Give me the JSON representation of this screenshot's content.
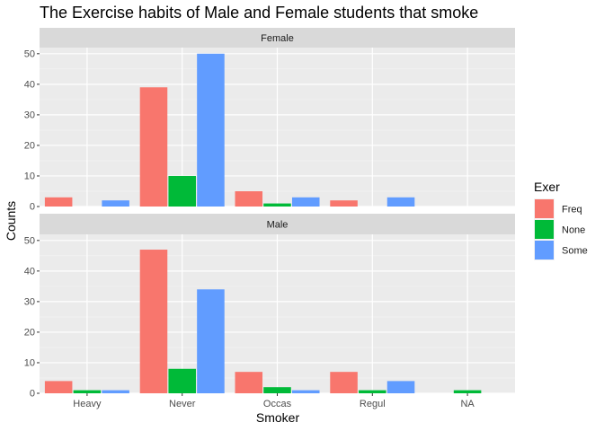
{
  "chart_data": {
    "type": "bar",
    "title": "The Exercise habits of Male and Female students that smoke",
    "xlabel": "Smoker",
    "ylabel": "Counts",
    "categories": [
      "Heavy",
      "Never",
      "Occas",
      "Regul",
      "NA"
    ],
    "ylim": [
      0,
      52
    ],
    "y_ticks": [
      0,
      10,
      20,
      30,
      40,
      50
    ],
    "legend": {
      "title": "Exer",
      "placement": "right",
      "entries": [
        {
          "label": "Freq",
          "color": "#F8766D"
        },
        {
          "label": "None",
          "color": "#00BA38"
        },
        {
          "label": "Some",
          "color": "#619CFF"
        }
      ]
    },
    "panels": [
      {
        "label": "Female",
        "bars": [
          {
            "category": "Heavy",
            "exer": "Freq",
            "value": 3
          },
          {
            "category": "Heavy",
            "exer": "Some",
            "value": 2
          },
          {
            "category": "Never",
            "exer": "Freq",
            "value": 39
          },
          {
            "category": "Never",
            "exer": "None",
            "value": 10
          },
          {
            "category": "Never",
            "exer": "Some",
            "value": 50
          },
          {
            "category": "Occas",
            "exer": "Freq",
            "value": 5
          },
          {
            "category": "Occas",
            "exer": "None",
            "value": 1
          },
          {
            "category": "Occas",
            "exer": "Some",
            "value": 3
          },
          {
            "category": "Regul",
            "exer": "Freq",
            "value": 2
          },
          {
            "category": "Regul",
            "exer": "Some",
            "value": 3
          }
        ]
      },
      {
        "label": "Male",
        "bars": [
          {
            "category": "Heavy",
            "exer": "Freq",
            "value": 4
          },
          {
            "category": "Heavy",
            "exer": "None",
            "value": 1
          },
          {
            "category": "Heavy",
            "exer": "Some",
            "value": 1
          },
          {
            "category": "Never",
            "exer": "Freq",
            "value": 47
          },
          {
            "category": "Never",
            "exer": "None",
            "value": 8
          },
          {
            "category": "Never",
            "exer": "Some",
            "value": 34
          },
          {
            "category": "Occas",
            "exer": "Freq",
            "value": 7
          },
          {
            "category": "Occas",
            "exer": "None",
            "value": 2
          },
          {
            "category": "Occas",
            "exer": "Some",
            "value": 1
          },
          {
            "category": "Regul",
            "exer": "Freq",
            "value": 7
          },
          {
            "category": "Regul",
            "exer": "None",
            "value": 1
          },
          {
            "category": "Regul",
            "exer": "Some",
            "value": 4
          },
          {
            "category": "NA",
            "exer": "None",
            "value": 1
          }
        ]
      }
    ],
    "grid": true
  }
}
